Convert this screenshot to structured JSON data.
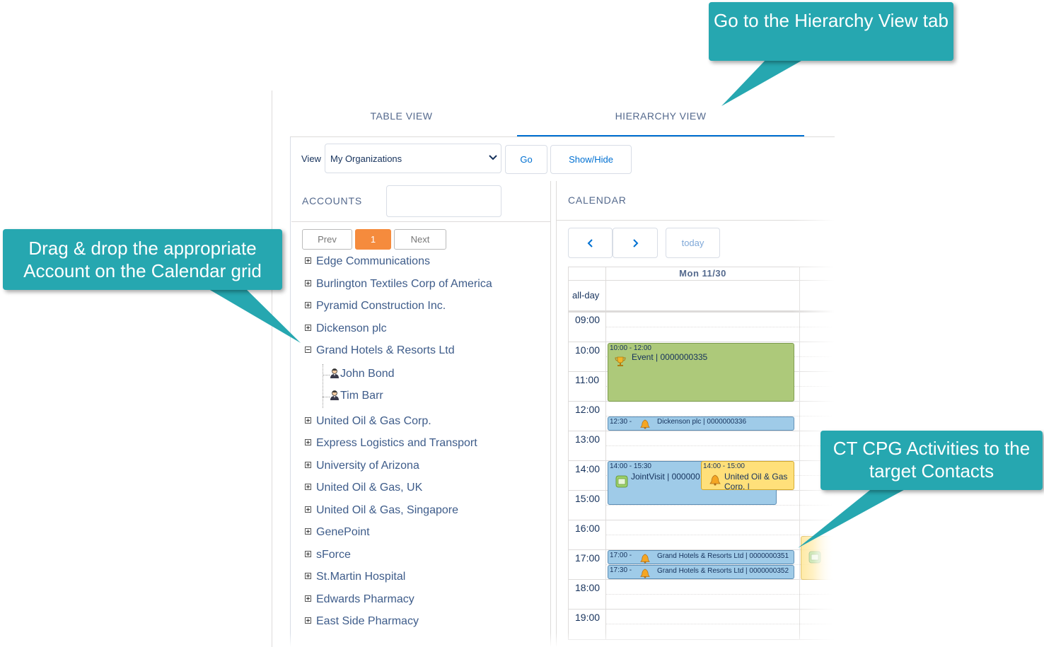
{
  "tabs": [
    {
      "label": "TABLE VIEW",
      "active": false
    },
    {
      "label": "HIERARCHY VIEW",
      "active": true
    }
  ],
  "toolbar": {
    "view_label": "View",
    "view_selected": "My Organizations",
    "go_label": "Go",
    "show_hide_label": "Show/Hide"
  },
  "accounts": {
    "title": "ACCOUNTS",
    "search_value": "",
    "pager": {
      "prev": "Prev",
      "page": "1",
      "next": "Next"
    },
    "items": [
      {
        "label": "Edge Communications",
        "expanded": false
      },
      {
        "label": "Burlington Textiles Corp of America",
        "expanded": false
      },
      {
        "label": "Pyramid Construction Inc.",
        "expanded": false
      },
      {
        "label": "Dickenson plc",
        "expanded": false
      },
      {
        "label": "Grand Hotels & Resorts Ltd",
        "expanded": true
      },
      {
        "label": "United Oil & Gas Corp.",
        "expanded": false
      },
      {
        "label": "Express Logistics and Transport",
        "expanded": false
      },
      {
        "label": "University of Arizona",
        "expanded": false
      },
      {
        "label": "United Oil & Gas, UK",
        "expanded": false
      },
      {
        "label": "United Oil & Gas, Singapore",
        "expanded": false
      },
      {
        "label": "GenePoint",
        "expanded": false
      },
      {
        "label": "sForce",
        "expanded": false
      },
      {
        "label": "St.Martin Hospital",
        "expanded": false
      },
      {
        "label": "Edwards Pharmacy",
        "expanded": false
      },
      {
        "label": "East Side Pharmacy",
        "expanded": false
      }
    ],
    "contacts": [
      "John Bond",
      "Tim Barr"
    ]
  },
  "calendar": {
    "title": "CALENDAR",
    "prev_icon": "chevron-left-icon",
    "next_icon": "chevron-right-icon",
    "today_label": "today",
    "day_header": "Mon 11/30",
    "allday_label": "all-day",
    "hours": [
      "09:00",
      "10:00",
      "11:00",
      "12:00",
      "13:00",
      "14:00",
      "15:00",
      "16:00",
      "17:00",
      "18:00",
      "19:00"
    ],
    "events": [
      {
        "time": "10:00 - 12:00",
        "title": "Event | 0000000335",
        "icon": "trophy-icon",
        "color": "#adc97a"
      },
      {
        "time": "12:30 -",
        "title": "Dickenson plc | 0000000336",
        "icon": "bell-icon",
        "color": "#9fcbe8"
      },
      {
        "time": "14:00 - 15:30",
        "title": "JointVisit | 000000",
        "icon": "visit-icon",
        "color": "#9fcbe8"
      },
      {
        "time": "14:00 - 15:00",
        "title": "United Oil & Gas Corp. |",
        "icon": "bell-icon",
        "color": "#ffe07a"
      },
      {
        "time": "17:00 -",
        "title": "Grand Hotels & Resorts Ltd | 0000000351",
        "icon": "bell-icon",
        "color": "#9fcbe8"
      },
      {
        "time": "17:30 -",
        "title": "Grand Hotels & Resorts Ltd | 0000000352",
        "icon": "bell-icon",
        "color": "#9fcbe8"
      }
    ]
  },
  "callouts": {
    "hierarchy": "Go to the Hierarchy View tab",
    "drag": "Drag & drop the appropriate Account on the Calendar grid",
    "ct": "CT CPG Activities to the target Contacts"
  },
  "colors": {
    "accent": "#0070d2",
    "callout": "#26a7b0",
    "pager_active": "#f58b3d"
  }
}
